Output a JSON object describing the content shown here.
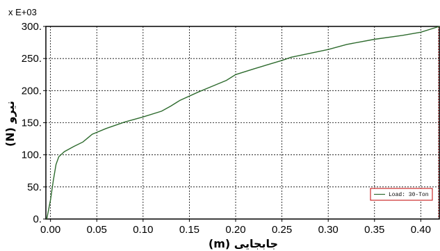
{
  "chart_data": {
    "type": "line",
    "title": "",
    "xlabel": "جابجایی (m)",
    "ylabel": "نیرو (N)",
    "y_multiplier": "x E+03",
    "xlim": [
      -0.005,
      0.42
    ],
    "ylim": [
      0,
      300
    ],
    "x_ticks": [
      0.0,
      0.05,
      0.1,
      0.15,
      0.2,
      0.25,
      0.3,
      0.35,
      0.4
    ],
    "x_tick_labels": [
      "0.00",
      "0.05",
      "0.10",
      "0.15",
      "0.20",
      "0.25",
      "0.30",
      "0.35",
      "0.40"
    ],
    "y_ticks": [
      0,
      50,
      100,
      150,
      200,
      250,
      300
    ],
    "y_tick_labels": [
      "0.",
      "50.",
      "100.",
      "150.",
      "200.",
      "250.",
      "300."
    ],
    "grid": true,
    "legend_position": "bottom-right",
    "series": [
      {
        "name": "Load: 30-Ton",
        "color": "#2e6b2e",
        "x": [
          -0.004,
          0.0,
          0.003,
          0.006,
          0.009,
          0.015,
          0.025,
          0.035,
          0.04,
          0.045,
          0.06,
          0.08,
          0.1,
          0.12,
          0.13,
          0.14,
          0.16,
          0.18,
          0.19,
          0.2,
          0.22,
          0.25,
          0.26,
          0.27,
          0.3,
          0.32,
          0.35,
          0.38,
          0.4,
          0.42
        ],
        "y": [
          0,
          30,
          60,
          85,
          97,
          105,
          113,
          120,
          126,
          132,
          141,
          151,
          159,
          168,
          176,
          185,
          198,
          210,
          216,
          225,
          234,
          247,
          252,
          255,
          264,
          272,
          280,
          286,
          291,
          300
        ]
      }
    ]
  }
}
